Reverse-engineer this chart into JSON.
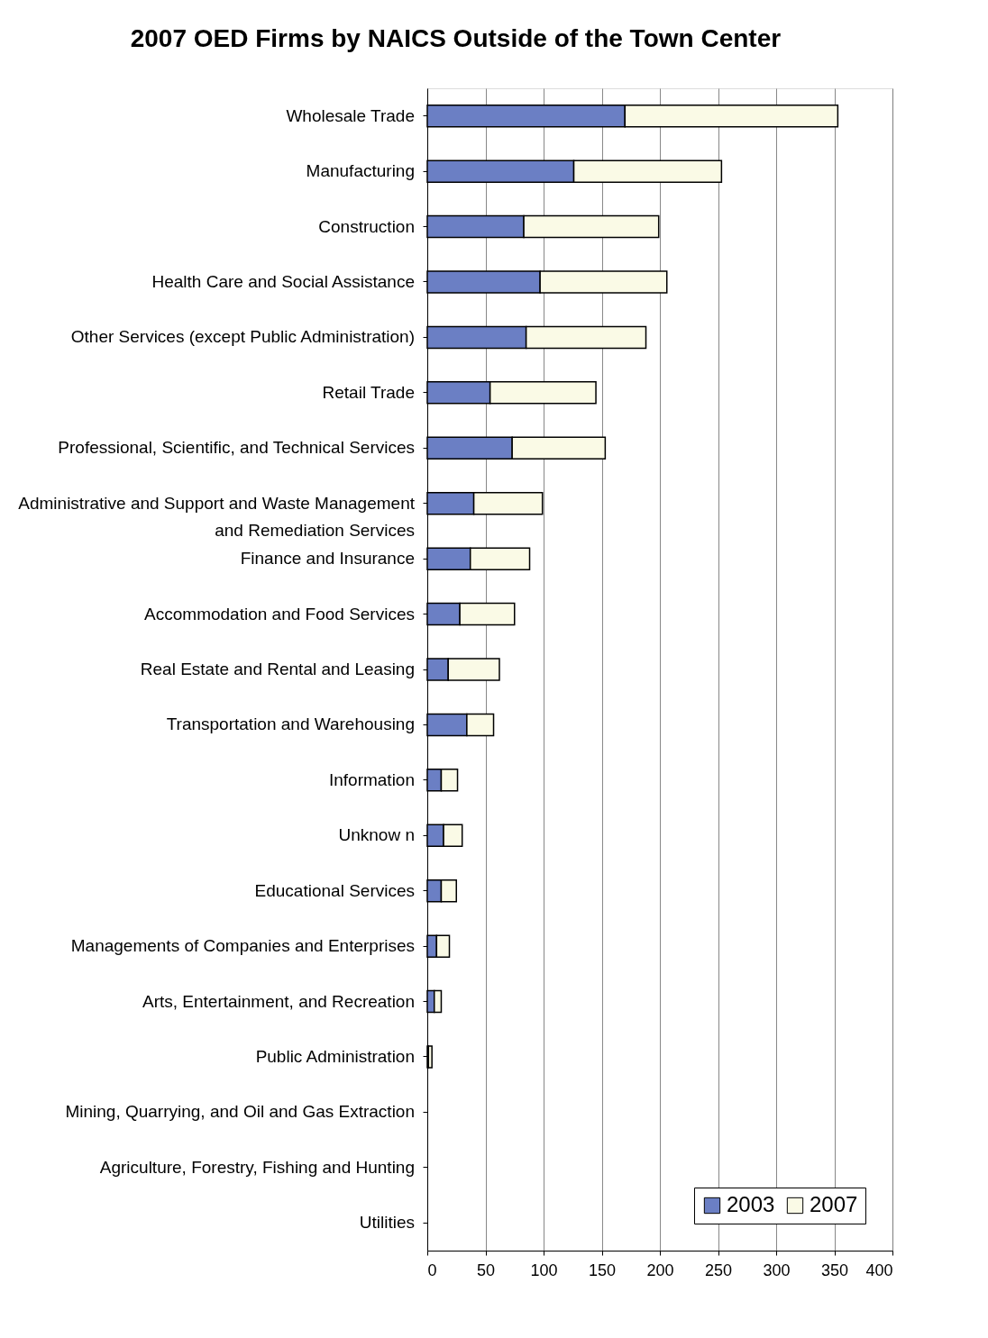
{
  "chart_data": {
    "type": "bar",
    "title": "2007 OED Firms by NAICS Outside of the Town Center",
    "orientation": "horizontal",
    "stacked": true,
    "categories": [
      "Wholesale Trade",
      "Manufacturing",
      "Construction",
      "Health Care and Social Assistance",
      "Other Services (except Public Administration)",
      "Retail Trade",
      "Professional, Scientific, and Technical Services",
      "Administrative and Support and Waste Management and Remediation Services",
      "Finance and Insurance",
      "Accommodation and Food Services",
      "Real Estate and Rental and Leasing",
      "Transportation and Warehousing",
      "Information",
      "Unknow n",
      "Educational Services",
      "Managements of Companies and Enterprises",
      "Arts, Entertainment, and Recreation",
      "Public Administration",
      "Mining, Quarrying, and Oil and Gas Extraction",
      "Agriculture, Forestry, Fishing and Hunting",
      "Utilities"
    ],
    "series": [
      {
        "name": "2003",
        "color": "#6b7fc4",
        "values": [
          170,
          126,
          83,
          97,
          85,
          54,
          73,
          40,
          37,
          28,
          18,
          34,
          12,
          14,
          12,
          8,
          6,
          1,
          0,
          0,
          0
        ]
      },
      {
        "name": "2007",
        "color": "#fafae6",
        "values": [
          183,
          127,
          116,
          109,
          103,
          91,
          80,
          59,
          51,
          47,
          44,
          23,
          14,
          16,
          13,
          11,
          6,
          3,
          0,
          0,
          0
        ]
      }
    ],
    "xlim": [
      0,
      400
    ],
    "xticks": [
      0,
      50,
      100,
      150,
      200,
      250,
      300,
      350,
      400
    ],
    "grid": "x",
    "legend": "bottom right"
  }
}
